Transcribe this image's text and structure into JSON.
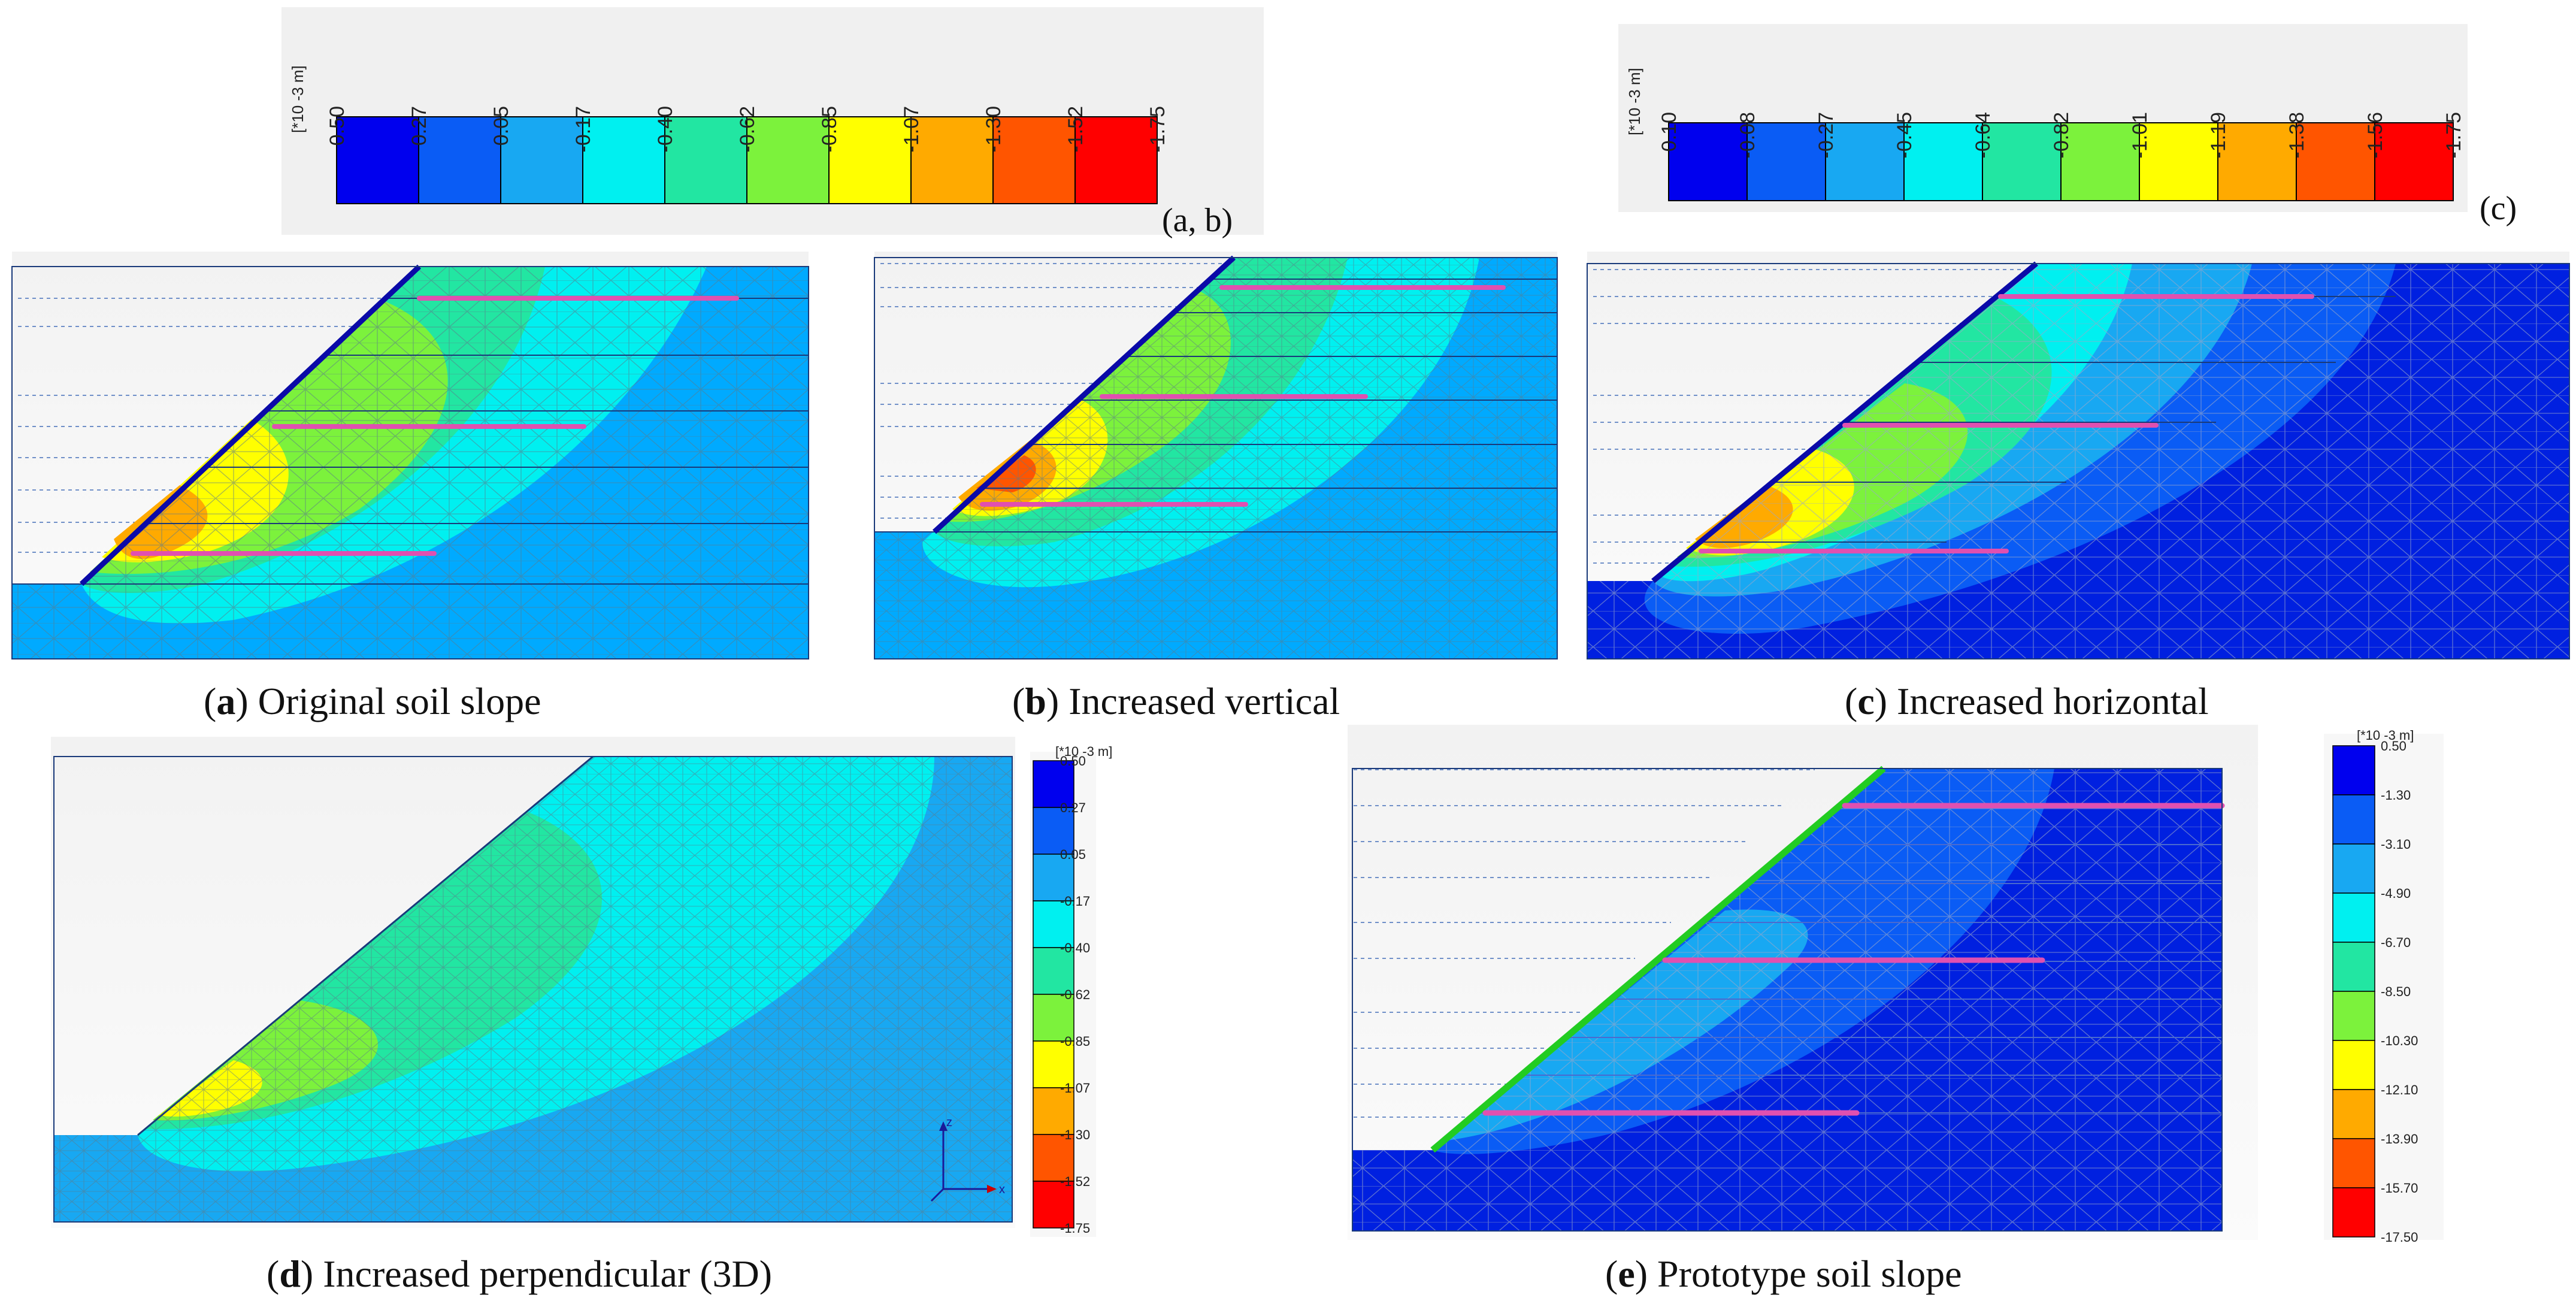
{
  "legends": {
    "ab": {
      "unit": "[*10 -3 m]",
      "ticks": [
        "0.50",
        "0.27",
        "0.05",
        "-0.17",
        "-0.40",
        "-0.62",
        "-0.85",
        "-1.07",
        "-1.30",
        "-1.52",
        "-1.75"
      ],
      "tag": "(a, b)"
    },
    "c": {
      "unit": "[*10 -3 m]",
      "ticks": [
        "0.10",
        "-0.08",
        "-0.27",
        "-0.45",
        "-0.64",
        "-0.82",
        "-1.01",
        "-1.19",
        "-1.38",
        "-1.56",
        "-1.75"
      ],
      "tag": "(c)"
    },
    "d": {
      "unit": "[*10 -3 m]",
      "ticks": [
        "0.50",
        "0.27",
        "0.05",
        "-0.17",
        "-0.40",
        "-0.62",
        "-0.85",
        "-1.07",
        "-1.30",
        "-1.52",
        "-1.75"
      ]
    },
    "e": {
      "unit": "[*10 -3 m]",
      "ticks": [
        "0.50",
        "-1.30",
        "-3.10",
        "-4.90",
        "-6.70",
        "-8.50",
        "-10.30",
        "-12.10",
        "-13.90",
        "-15.70",
        "-17.50"
      ]
    }
  },
  "colors": {
    "scale": [
      "#0000ee",
      "#0a5cf5",
      "#18a8f2",
      "#00f0f0",
      "#22e6a2",
      "#7cf23c",
      "#ffff00",
      "#ffaa00",
      "#ff5500",
      "#ff0000"
    ],
    "background_blue": "#00aaff",
    "deep_blue": "#0020e0",
    "nail": "#e050b0",
    "facing_blue": "#0a0aa8",
    "facing_green": "#22cc22"
  },
  "panels": {
    "a": {
      "letter": "a",
      "title": " Original soil slope"
    },
    "b": {
      "letter": "b",
      "title": " Increased vertical"
    },
    "c": {
      "letter": "c",
      "title": " Increased horizontal"
    },
    "d": {
      "letter": "d",
      "title": " Increased perpendicular (3D)"
    },
    "e": {
      "letter": "e",
      "title": " Prototype soil slope"
    }
  },
  "axis_labels": {
    "z": "z",
    "x": "x"
  }
}
